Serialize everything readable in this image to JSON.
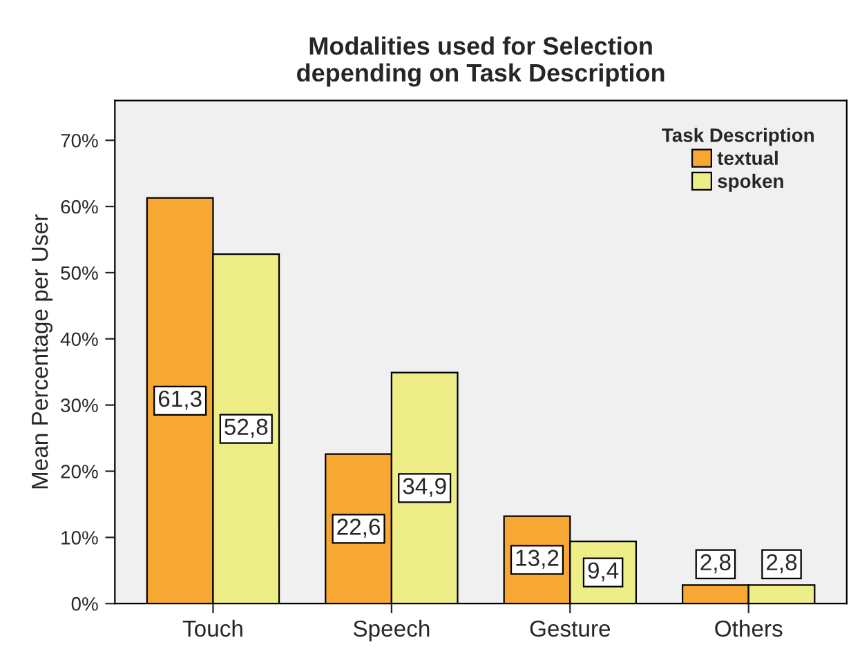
{
  "chart_data": {
    "type": "bar",
    "title": "Modalities used for Selection\ndepending on Task Description",
    "ylabel": "Mean Percentage per User",
    "legend_title": "Task Description",
    "categories": [
      "Touch",
      "Speech",
      "Gesture",
      "Others"
    ],
    "series": [
      {
        "name": "textual",
        "color": "#f7a833",
        "values": [
          61.3,
          22.6,
          13.2,
          2.8
        ],
        "value_labels": [
          "61,3",
          "22,6",
          "13,2",
          "2,8"
        ]
      },
      {
        "name": "spoken",
        "color": "#eeee88",
        "values": [
          52.8,
          34.9,
          9.4,
          2.8
        ],
        "value_labels": [
          "52,8",
          "34,9",
          "9,4",
          "2,8"
        ]
      }
    ],
    "ylim": [
      0,
      76
    ],
    "yticks": [
      {
        "value": 0,
        "label": "0%"
      },
      {
        "value": 10,
        "label": "10%"
      },
      {
        "value": 20,
        "label": "20%"
      },
      {
        "value": 30,
        "label": "30%"
      },
      {
        "value": 40,
        "label": "40%"
      },
      {
        "value": 50,
        "label": "50%"
      },
      {
        "value": 60,
        "label": "60%"
      },
      {
        "value": 70,
        "label": "70%"
      }
    ],
    "grid": false,
    "legend": "top right"
  }
}
